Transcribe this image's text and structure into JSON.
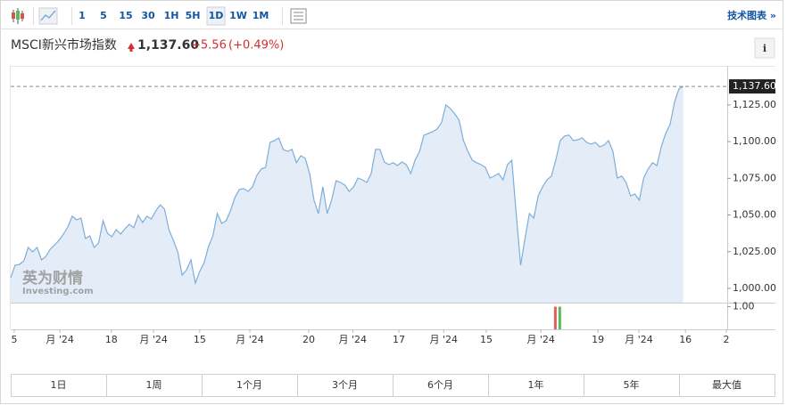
{
  "toolbar": {
    "intervals": [
      "1",
      "5",
      "15",
      "30",
      "1H",
      "5H",
      "1D",
      "1W",
      "1M"
    ],
    "selected_index": 6,
    "link": "技术图表 »"
  },
  "header": {
    "name": "MSCI新兴市场指数",
    "price": "1,137.60",
    "change": "+5.56",
    "change_pct": "(+0.49%)",
    "info": "i"
  },
  "watermark": {
    "brand": "英为财情",
    "site": "Investing.com"
  },
  "chart_data": {
    "type": "area",
    "color": "#7eaed8",
    "fill": "#e4edf7",
    "values": [
      1007.3,
      1015.8,
      1016.4,
      1018.8,
      1027.9,
      1024.9,
      1027.9,
      1019.4,
      1021.8,
      1026.7,
      1029.7,
      1032.8,
      1037.0,
      1041.9,
      1049.2,
      1046.7,
      1047.9,
      1034.0,
      1035.8,
      1027.9,
      1030.9,
      1046.1,
      1037.6,
      1035.2,
      1040.0,
      1037.0,
      1040.7,
      1043.7,
      1041.3,
      1049.8,
      1044.9,
      1049.2,
      1047.3,
      1052.8,
      1057.0,
      1054.0,
      1040.0,
      1032.8,
      1024.9,
      1009.1,
      1012.7,
      1019.4,
      1003.6,
      1011.5,
      1017.6,
      1028.5,
      1035.8,
      1051.0,
      1044.3,
      1046.1,
      1052.8,
      1061.9,
      1067.4,
      1068.0,
      1066.1,
      1069.2,
      1077.1,
      1081.3,
      1082.5,
      1099.5,
      1100.7,
      1102.5,
      1094.7,
      1093.4,
      1094.7,
      1085.6,
      1090.4,
      1088.6,
      1078.3,
      1060.1,
      1051.0,
      1069.2,
      1051.0,
      1060.1,
      1073.4,
      1072.2,
      1070.4,
      1066.1,
      1069.2,
      1075.2,
      1074.0,
      1072.2,
      1078.3,
      1094.7,
      1094.7,
      1086.2,
      1084.3,
      1085.6,
      1083.7,
      1086.2,
      1084.3,
      1078.3,
      1087.4,
      1093.4,
      1104.4,
      1105.6,
      1106.8,
      1108.6,
      1112.9,
      1125.0,
      1122.6,
      1118.9,
      1114.7,
      1100.7,
      1093.4,
      1087.4,
      1085.6,
      1084.3,
      1082.5,
      1075.2,
      1076.5,
      1078.3,
      1074.0,
      1084.3,
      1087.4,
      1051.0,
      1015.8,
      1034.0,
      1051.0,
      1047.9,
      1063.1,
      1069.2,
      1074.0,
      1076.5,
      1087.4,
      1100.7,
      1103.8,
      1104.4,
      1100.7,
      1101.3,
      1102.5,
      1099.5,
      1098.3,
      1099.5,
      1096.5,
      1097.7,
      1100.7,
      1093.4,
      1075.2,
      1076.5,
      1072.2,
      1063.1,
      1064.3,
      1060.1,
      1075.2,
      1081.3,
      1085.6,
      1083.7,
      1096.5,
      1105.6,
      1111.7,
      1126.8,
      1135.9,
      1137.6
    ],
    "xlim": [
      0,
      163
    ],
    "xticks": [
      {
        "value": 0.8,
        "label": "5"
      },
      {
        "value": 11.2,
        "label": "月 '24"
      },
      {
        "value": 22.9,
        "label": "18"
      },
      {
        "value": 32.5,
        "label": "月 '24"
      },
      {
        "value": 43.0,
        "label": "15"
      },
      {
        "value": 54.4,
        "label": "月 '24"
      },
      {
        "value": 67.8,
        "label": "20"
      },
      {
        "value": 77.8,
        "label": "月 '24"
      },
      {
        "value": 88.3,
        "label": "17"
      },
      {
        "value": 98.5,
        "label": "月 '24"
      },
      {
        "value": 108.2,
        "label": "15"
      },
      {
        "value": 120.6,
        "label": "月 '24"
      },
      {
        "value": 133.6,
        "label": "19"
      },
      {
        "value": 142.9,
        "label": "月 '24"
      },
      {
        "value": 153.5,
        "label": "16"
      },
      {
        "value": 162.8,
        "label": "2"
      }
    ],
    "ylim": [
      990.3,
      1151
    ],
    "yticks": [
      {
        "value": 1000,
        "label": "1,000.00"
      },
      {
        "value": 1025,
        "label": "1,025.00"
      },
      {
        "value": 1050,
        "label": "1,050.00"
      },
      {
        "value": 1075,
        "label": "1,075.00"
      },
      {
        "value": 1100,
        "label": "1,100.00"
      },
      {
        "value": 1125,
        "label": "1,125.00"
      }
    ],
    "last_value": {
      "value": 1137.6,
      "label": "1,137.60"
    },
    "volume": {
      "x": [
        124,
        125
      ],
      "values": [
        1,
        1
      ],
      "colors": [
        "#e06060",
        "#5cb85c"
      ],
      "ylim": [
        0,
        1.1
      ],
      "yticks": [
        {
          "value": 1,
          "label": "1.00"
        }
      ]
    }
  },
  "ranges": [
    "1日",
    "1周",
    "1个月",
    "3个月",
    "6个月",
    "1年",
    "5年",
    "最大值"
  ]
}
